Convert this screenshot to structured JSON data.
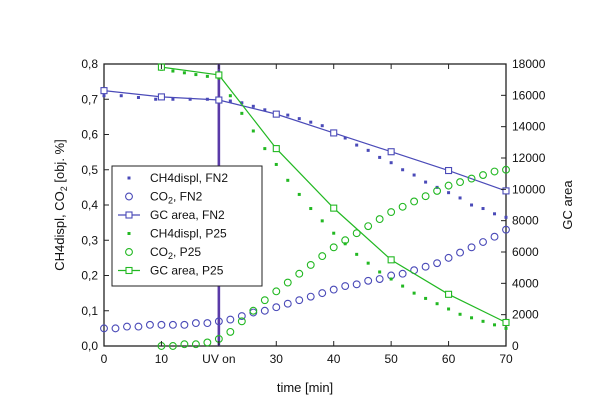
{
  "chart_data": {
    "type": "scatter",
    "xlabel": "time [min]",
    "ylabel_left": "CH4displ, CO2 [obj. %]",
    "ylabel_right": "GC area",
    "xlim": [
      0,
      70
    ],
    "ylim_left": [
      0,
      0.8
    ],
    "ylim_right": [
      0,
      18000
    ],
    "x_ticks": [
      {
        "value": 0,
        "label": "0"
      },
      {
        "value": 10,
        "label": "10"
      },
      {
        "value": 20,
        "label": "UV on"
      },
      {
        "value": 30,
        "label": "30"
      },
      {
        "value": 40,
        "label": "40"
      },
      {
        "value": 50,
        "label": "50"
      },
      {
        "value": 60,
        "label": "60"
      },
      {
        "value": 70,
        "label": "70"
      }
    ],
    "y_left_ticks": [
      "0,0",
      "0,1",
      "0,2",
      "0,3",
      "0,4",
      "0,5",
      "0,6",
      "0,7",
      "0,8"
    ],
    "y_right_ticks": [
      "0",
      "2000",
      "4000",
      "6000",
      "8000",
      "10000",
      "12000",
      "14000",
      "16000",
      "18000"
    ],
    "uv_on_x": 20,
    "colors": {
      "fn2": "#4a4ab8",
      "p25": "#22b822",
      "uv_line": "#5a3aa8"
    },
    "series": [
      {
        "name": "CH4displ, FN2",
        "axis": "left",
        "style": "dots",
        "color": "#4a4ab8",
        "points": [
          [
            0,
            0.71
          ],
          [
            3,
            0.71
          ],
          [
            6,
            0.705
          ],
          [
            9,
            0.7
          ],
          [
            12,
            0.7
          ],
          [
            15,
            0.7
          ],
          [
            18,
            0.7
          ],
          [
            20,
            0.7
          ],
          [
            22,
            0.695
          ],
          [
            24,
            0.69
          ],
          [
            26,
            0.68
          ],
          [
            28,
            0.67
          ],
          [
            30,
            0.66
          ],
          [
            32,
            0.655
          ],
          [
            34,
            0.645
          ],
          [
            36,
            0.635
          ],
          [
            38,
            0.625
          ],
          [
            40,
            0.61
          ],
          [
            42,
            0.59
          ],
          [
            44,
            0.57
          ],
          [
            46,
            0.555
          ],
          [
            48,
            0.535
          ],
          [
            50,
            0.52
          ],
          [
            52,
            0.5
          ],
          [
            54,
            0.485
          ],
          [
            56,
            0.465
          ],
          [
            58,
            0.45
          ],
          [
            60,
            0.435
          ],
          [
            62,
            0.42
          ],
          [
            64,
            0.4
          ],
          [
            66,
            0.39
          ],
          [
            68,
            0.375
          ],
          [
            70,
            0.365
          ]
        ]
      },
      {
        "name": "CO2, FN2",
        "axis": "left",
        "style": "circles",
        "color": "#4a4ab8",
        "points": [
          [
            0,
            0.05
          ],
          [
            2,
            0.05
          ],
          [
            4,
            0.055
          ],
          [
            6,
            0.055
          ],
          [
            8,
            0.06
          ],
          [
            10,
            0.06
          ],
          [
            12,
            0.06
          ],
          [
            14,
            0.06
          ],
          [
            16,
            0.065
          ],
          [
            18,
            0.065
          ],
          [
            20,
            0.07
          ],
          [
            22,
            0.075
          ],
          [
            24,
            0.085
          ],
          [
            26,
            0.095
          ],
          [
            28,
            0.1
          ],
          [
            30,
            0.11
          ],
          [
            32,
            0.12
          ],
          [
            34,
            0.13
          ],
          [
            36,
            0.14
          ],
          [
            38,
            0.15
          ],
          [
            40,
            0.16
          ],
          [
            42,
            0.17
          ],
          [
            44,
            0.175
          ],
          [
            46,
            0.185
          ],
          [
            48,
            0.19
          ],
          [
            50,
            0.2
          ],
          [
            52,
            0.205
          ],
          [
            54,
            0.215
          ],
          [
            56,
            0.225
          ],
          [
            58,
            0.235
          ],
          [
            60,
            0.25
          ],
          [
            62,
            0.265
          ],
          [
            64,
            0.28
          ],
          [
            66,
            0.295
          ],
          [
            68,
            0.31
          ],
          [
            70,
            0.33
          ]
        ]
      },
      {
        "name": "GC area, FN2",
        "axis": "right",
        "style": "line-squares",
        "color": "#4a4ab8",
        "points": [
          [
            0,
            16300
          ],
          [
            10,
            15900
          ],
          [
            20,
            15700
          ],
          [
            30,
            14800
          ],
          [
            40,
            13600
          ],
          [
            50,
            12400
          ],
          [
            60,
            11200
          ],
          [
            70,
            9900
          ]
        ]
      },
      {
        "name": "CH4displ, P25",
        "axis": "left",
        "style": "dots",
        "color": "#22b822",
        "points": [
          [
            10,
            0.785
          ],
          [
            12,
            0.78
          ],
          [
            14,
            0.775
          ],
          [
            16,
            0.77
          ],
          [
            18,
            0.765
          ],
          [
            20,
            0.76
          ],
          [
            22,
            0.71
          ],
          [
            24,
            0.66
          ],
          [
            26,
            0.61
          ],
          [
            28,
            0.56
          ],
          [
            30,
            0.515
          ],
          [
            32,
            0.47
          ],
          [
            34,
            0.43
          ],
          [
            36,
            0.39
          ],
          [
            38,
            0.355
          ],
          [
            40,
            0.32
          ],
          [
            42,
            0.29
          ],
          [
            44,
            0.26
          ],
          [
            46,
            0.235
          ],
          [
            48,
            0.21
          ],
          [
            50,
            0.19
          ],
          [
            52,
            0.17
          ],
          [
            54,
            0.15
          ],
          [
            56,
            0.135
          ],
          [
            58,
            0.12
          ],
          [
            60,
            0.105
          ],
          [
            62,
            0.09
          ],
          [
            64,
            0.08
          ],
          [
            66,
            0.07
          ],
          [
            68,
            0.06
          ],
          [
            70,
            0.05
          ]
        ]
      },
      {
        "name": "CO2, P25",
        "axis": "left",
        "style": "circles",
        "color": "#22b822",
        "points": [
          [
            10,
            0.0
          ],
          [
            12,
            0.0
          ],
          [
            14,
            0.005
          ],
          [
            16,
            0.005
          ],
          [
            18,
            0.01
          ],
          [
            20,
            0.02
          ],
          [
            22,
            0.04
          ],
          [
            24,
            0.07
          ],
          [
            26,
            0.1
          ],
          [
            28,
            0.13
          ],
          [
            30,
            0.155
          ],
          [
            32,
            0.18
          ],
          [
            34,
            0.205
          ],
          [
            36,
            0.23
          ],
          [
            38,
            0.255
          ],
          [
            40,
            0.28
          ],
          [
            42,
            0.3
          ],
          [
            44,
            0.32
          ],
          [
            46,
            0.34
          ],
          [
            48,
            0.36
          ],
          [
            50,
            0.38
          ],
          [
            52,
            0.395
          ],
          [
            54,
            0.41
          ],
          [
            56,
            0.425
          ],
          [
            58,
            0.44
          ],
          [
            60,
            0.455
          ],
          [
            62,
            0.465
          ],
          [
            64,
            0.475
          ],
          [
            66,
            0.485
          ],
          [
            68,
            0.495
          ],
          [
            70,
            0.5
          ]
        ]
      },
      {
        "name": "GC area, P25",
        "axis": "right",
        "style": "line-squares",
        "color": "#22b822",
        "points": [
          [
            10,
            17800
          ],
          [
            20,
            17300
          ],
          [
            30,
            12600
          ],
          [
            40,
            8800
          ],
          [
            50,
            5500
          ],
          [
            60,
            3300
          ],
          [
            70,
            1500
          ]
        ]
      }
    ],
    "legend": {
      "position": "left-middle",
      "entries": [
        "CH4displ, FN2",
        "CO2, FN2",
        "GC area, FN2",
        "CH4displ, P25",
        "CO2, P25",
        "GC area, P25"
      ]
    }
  }
}
